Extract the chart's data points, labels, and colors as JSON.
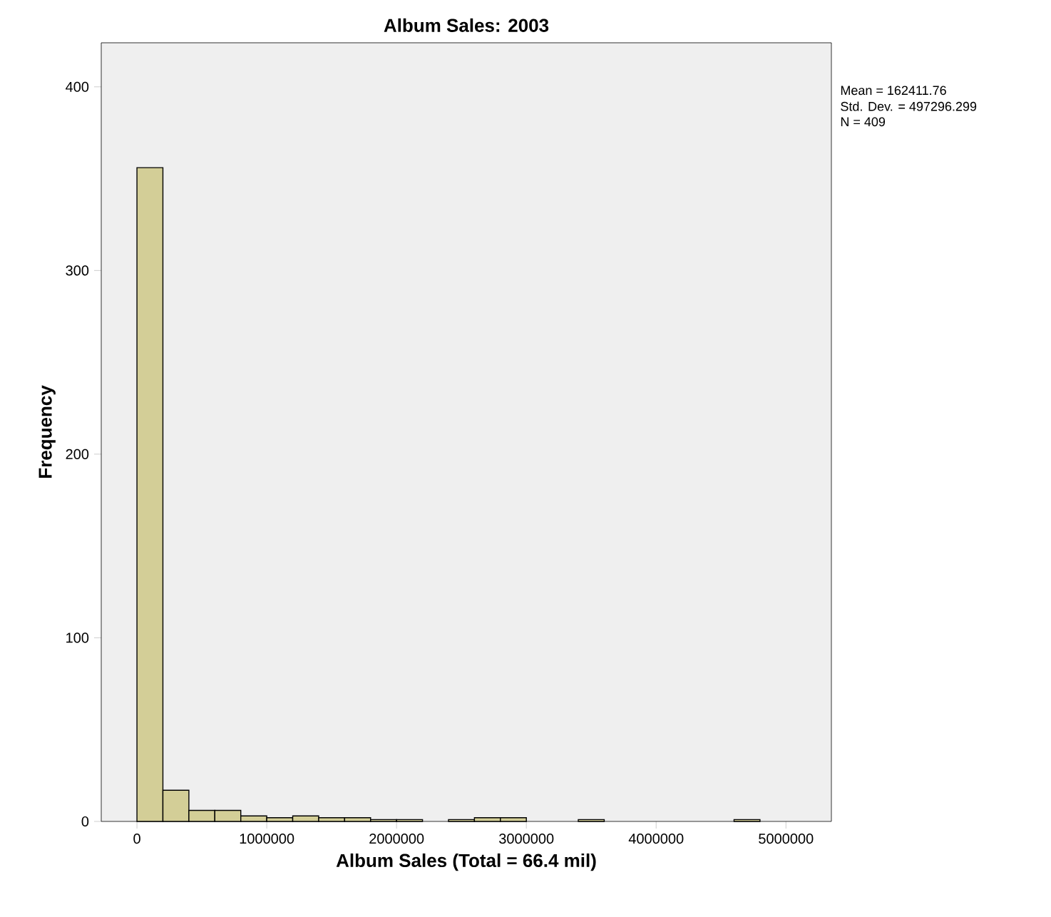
{
  "chart_data": {
    "type": "histogram",
    "title": "Album Sales: 2003",
    "xlabel": "Album Sales (Total = 66.4 mil)",
    "ylabel": "Frequency",
    "annotations": [
      "Mean = 162411.76",
      "Std. Dev. = 497296.299",
      "N = 409"
    ],
    "bins": [
      0,
      200000,
      400000,
      600000,
      800000,
      1000000,
      1200000,
      1400000,
      1600000,
      1800000,
      2000000,
      2200000,
      2400000,
      2600000,
      2800000,
      3000000,
      3200000,
      3400000,
      3600000,
      3800000,
      4000000,
      4200000,
      4400000,
      4600000,
      4800000
    ],
    "values": [
      356,
      17,
      6,
      6,
      3,
      2,
      3,
      2,
      2,
      1,
      1,
      0,
      1,
      2,
      2,
      0,
      0,
      1,
      0,
      0,
      0,
      0,
      0,
      1
    ],
    "color": "#d3ce97",
    "xlim": [
      -275000,
      5350000
    ],
    "ylim": [
      0,
      424
    ],
    "xticks": [
      0,
      1000000,
      2000000,
      3000000,
      4000000,
      5000000
    ],
    "yticks": [
      0,
      100,
      200,
      300,
      400
    ],
    "grid": false
  }
}
